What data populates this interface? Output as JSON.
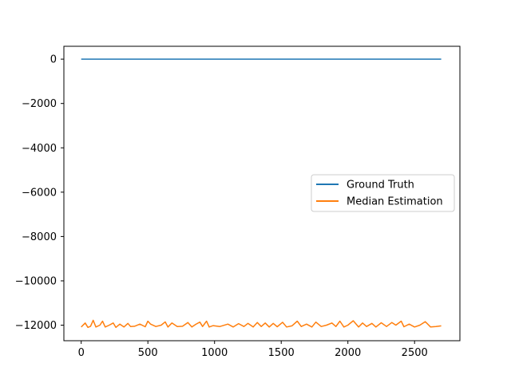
{
  "chart_data": {
    "type": "line",
    "title": "",
    "xlabel": "",
    "ylabel": "",
    "xlim": [
      -130,
      2840
    ],
    "ylim": [
      -12700,
      580
    ],
    "x_ticks": [
      0,
      500,
      1000,
      1500,
      2000,
      2500
    ],
    "y_ticks": [
      0,
      -2000,
      -4000,
      -6000,
      -8000,
      -10000,
      -12000
    ],
    "x_tick_labels": [
      "0",
      "500",
      "1000",
      "1500",
      "2000",
      "2500"
    ],
    "y_tick_labels": [
      "0",
      "−2000",
      "−4000",
      "−6000",
      "−8000",
      "−10000",
      "−12000"
    ],
    "legend": {
      "placement": "center-right"
    },
    "grid": false,
    "series": [
      {
        "name": "Ground Truth",
        "color": "#1f77b4",
        "x": [
          0,
          2700
        ],
        "y": [
          0,
          0
        ]
      },
      {
        "name": "Median Estimation",
        "color": "#ff7f0e",
        "x": [
          0,
          30,
          50,
          70,
          90,
          110,
          140,
          160,
          180,
          210,
          240,
          260,
          290,
          320,
          350,
          370,
          400,
          440,
          480,
          500,
          520,
          560,
          600,
          630,
          650,
          680,
          720,
          760,
          800,
          830,
          860,
          890,
          910,
          940,
          960,
          990,
          1040,
          1100,
          1140,
          1180,
          1220,
          1250,
          1290,
          1320,
          1350,
          1380,
          1410,
          1440,
          1470,
          1510,
          1540,
          1580,
          1620,
          1650,
          1690,
          1730,
          1760,
          1800,
          1840,
          1880,
          1910,
          1940,
          1970,
          2000,
          2040,
          2080,
          2110,
          2140,
          2180,
          2210,
          2250,
          2290,
          2330,
          2360,
          2400,
          2420,
          2460,
          2500,
          2540,
          2580,
          2620,
          2660,
          2700
        ],
        "y": [
          -12080,
          -11900,
          -12100,
          -12050,
          -11780,
          -12080,
          -12000,
          -11820,
          -12080,
          -12000,
          -11900,
          -12100,
          -11950,
          -12080,
          -11920,
          -12060,
          -12050,
          -11950,
          -12070,
          -11820,
          -11950,
          -12060,
          -12000,
          -11850,
          -12080,
          -11900,
          -12060,
          -12050,
          -11880,
          -12080,
          -11960,
          -11860,
          -12060,
          -11820,
          -12080,
          -12020,
          -12060,
          -11950,
          -12080,
          -11930,
          -12060,
          -11920,
          -12080,
          -11880,
          -12060,
          -11900,
          -12080,
          -11920,
          -12070,
          -11870,
          -12080,
          -12030,
          -11820,
          -12060,
          -11950,
          -12080,
          -11860,
          -12060,
          -12000,
          -11900,
          -12060,
          -11820,
          -12080,
          -12000,
          -11800,
          -12080,
          -11900,
          -12060,
          -11920,
          -12080,
          -11890,
          -12060,
          -11880,
          -12000,
          -11820,
          -12070,
          -11950,
          -12080,
          -12000,
          -11840,
          -12080,
          -12060,
          -12030
        ]
      }
    ]
  }
}
